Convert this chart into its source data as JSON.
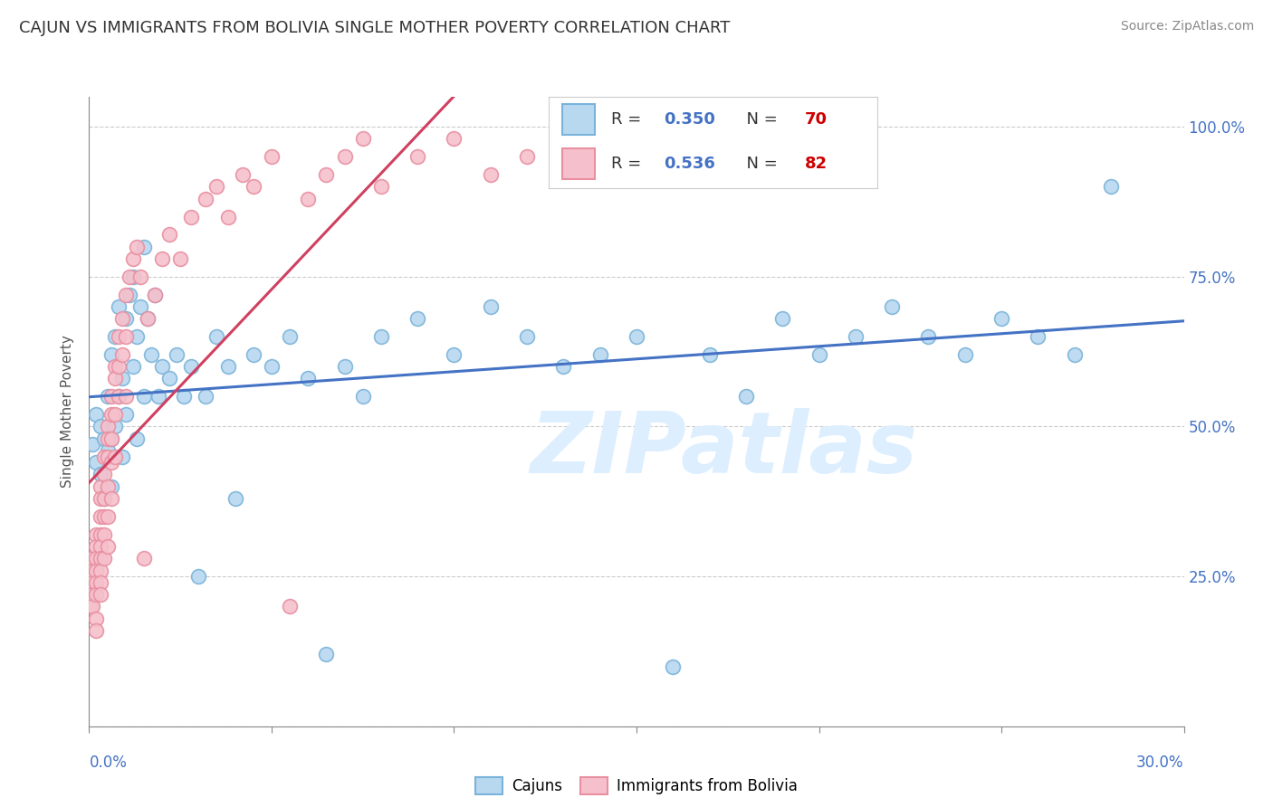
{
  "title": "CAJUN VS IMMIGRANTS FROM BOLIVIA SINGLE MOTHER POVERTY CORRELATION CHART",
  "source": "Source: ZipAtlas.com",
  "ylabel": "Single Mother Poverty",
  "xlim": [
    0.0,
    0.3
  ],
  "ylim": [
    0.0,
    1.05
  ],
  "cajun_R": 0.35,
  "cajun_N": 70,
  "bolivia_R": 0.536,
  "bolivia_N": 82,
  "cajun_color": "#7ab3d9",
  "cajun_face": "#b8d8f0",
  "bolivia_color": "#e88fa0",
  "bolivia_face": "#f5c0cc",
  "trend_cajun_color": "#4472c4",
  "trend_bolivia_color": "#d04060",
  "watermark": "ZIPatlas",
  "watermark_color": "#ddeeff",
  "cajun_x": [
    0.001,
    0.002,
    0.002,
    0.003,
    0.003,
    0.004,
    0.004,
    0.005,
    0.005,
    0.006,
    0.006,
    0.006,
    0.007,
    0.007,
    0.008,
    0.008,
    0.009,
    0.009,
    0.01,
    0.01,
    0.011,
    0.012,
    0.012,
    0.013,
    0.013,
    0.014,
    0.015,
    0.015,
    0.016,
    0.017,
    0.018,
    0.019,
    0.02,
    0.022,
    0.024,
    0.026,
    0.028,
    0.03,
    0.032,
    0.035,
    0.038,
    0.04,
    0.045,
    0.05,
    0.055,
    0.06,
    0.065,
    0.07,
    0.075,
    0.08,
    0.09,
    0.1,
    0.11,
    0.12,
    0.13,
    0.14,
    0.15,
    0.16,
    0.17,
    0.18,
    0.19,
    0.2,
    0.21,
    0.22,
    0.23,
    0.24,
    0.25,
    0.26,
    0.27,
    0.28
  ],
  "cajun_y": [
    0.47,
    0.52,
    0.44,
    0.5,
    0.42,
    0.48,
    0.38,
    0.46,
    0.55,
    0.62,
    0.48,
    0.4,
    0.65,
    0.5,
    0.7,
    0.55,
    0.58,
    0.45,
    0.68,
    0.52,
    0.72,
    0.6,
    0.75,
    0.65,
    0.48,
    0.7,
    0.8,
    0.55,
    0.68,
    0.62,
    0.72,
    0.55,
    0.6,
    0.58,
    0.62,
    0.55,
    0.6,
    0.25,
    0.55,
    0.65,
    0.6,
    0.38,
    0.62,
    0.6,
    0.65,
    0.58,
    0.12,
    0.6,
    0.55,
    0.65,
    0.68,
    0.62,
    0.7,
    0.65,
    0.6,
    0.62,
    0.65,
    0.1,
    0.62,
    0.55,
    0.68,
    0.62,
    0.65,
    0.7,
    0.65,
    0.62,
    0.68,
    0.65,
    0.62,
    0.9
  ],
  "bolivia_x": [
    0.0003,
    0.0005,
    0.0008,
    0.001,
    0.001,
    0.001,
    0.001,
    0.001,
    0.002,
    0.002,
    0.002,
    0.002,
    0.002,
    0.002,
    0.002,
    0.002,
    0.003,
    0.003,
    0.003,
    0.003,
    0.003,
    0.003,
    0.003,
    0.003,
    0.003,
    0.004,
    0.004,
    0.004,
    0.004,
    0.004,
    0.004,
    0.005,
    0.005,
    0.005,
    0.005,
    0.005,
    0.005,
    0.006,
    0.006,
    0.006,
    0.006,
    0.006,
    0.007,
    0.007,
    0.007,
    0.007,
    0.008,
    0.008,
    0.008,
    0.009,
    0.009,
    0.01,
    0.01,
    0.01,
    0.011,
    0.012,
    0.013,
    0.014,
    0.015,
    0.016,
    0.018,
    0.02,
    0.022,
    0.025,
    0.028,
    0.032,
    0.035,
    0.038,
    0.042,
    0.045,
    0.05,
    0.055,
    0.06,
    0.065,
    0.07,
    0.075,
    0.08,
    0.09,
    0.1,
    0.11,
    0.12,
    0.13
  ],
  "bolivia_y": [
    0.2,
    0.22,
    0.25,
    0.28,
    0.26,
    0.24,
    0.22,
    0.2,
    0.32,
    0.3,
    0.28,
    0.26,
    0.24,
    0.22,
    0.18,
    0.16,
    0.4,
    0.38,
    0.35,
    0.32,
    0.3,
    0.28,
    0.26,
    0.24,
    0.22,
    0.45,
    0.42,
    0.38,
    0.35,
    0.32,
    0.28,
    0.5,
    0.48,
    0.45,
    0.4,
    0.35,
    0.3,
    0.55,
    0.52,
    0.48,
    0.44,
    0.38,
    0.6,
    0.58,
    0.52,
    0.45,
    0.65,
    0.6,
    0.55,
    0.68,
    0.62,
    0.72,
    0.65,
    0.55,
    0.75,
    0.78,
    0.8,
    0.75,
    0.28,
    0.68,
    0.72,
    0.78,
    0.82,
    0.78,
    0.85,
    0.88,
    0.9,
    0.85,
    0.92,
    0.9,
    0.95,
    0.2,
    0.88,
    0.92,
    0.95,
    0.98,
    0.9,
    0.95,
    0.98,
    0.92,
    0.95,
    0.98
  ]
}
